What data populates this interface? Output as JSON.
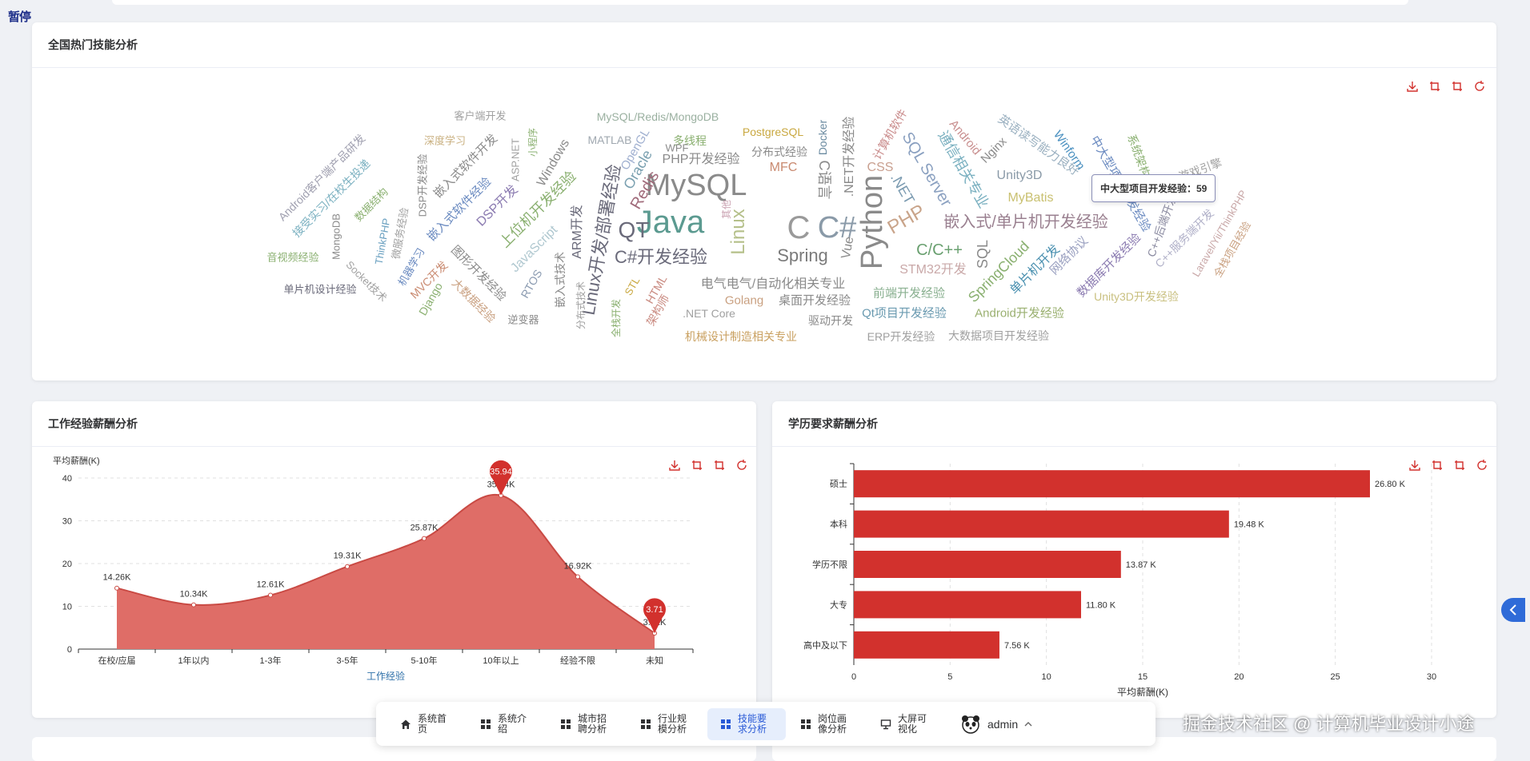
{
  "pause_label": "暂停",
  "colors": {
    "accent": "#d2312d",
    "area": "#df6d67",
    "nav_active": "#2859d6"
  },
  "wordcloud_card": {
    "title": "全国热门技能分析",
    "tooltip": "中大型项目开发经验：59",
    "words": [
      {
        "t": "MySQL",
        "c": "#8a8a8a",
        "s": 38,
        "x": 870,
        "y": 232,
        "r": 0
      },
      {
        "t": "Java",
        "c": "#5b9a90",
        "s": 40,
        "x": 838,
        "y": 278,
        "r": 0
      },
      {
        "t": "C",
        "c": "#9a9a9a",
        "s": 40,
        "x": 998,
        "y": 285,
        "r": 0
      },
      {
        "t": "C#",
        "c": "#8a9aa8",
        "s": 38,
        "x": 1046,
        "y": 285,
        "r": 0
      },
      {
        "t": "Linux",
        "c": "#b5c08a",
        "s": 24,
        "x": 923,
        "y": 290,
        "r": -90
      },
      {
        "t": "Python",
        "c": "#8a8a8a",
        "s": 38,
        "x": 1090,
        "y": 278,
        "r": -90
      },
      {
        "t": "QT",
        "c": "#6a6a7a",
        "s": 28,
        "x": 792,
        "y": 288,
        "r": 0
      },
      {
        "t": "Spring",
        "c": "#7a7a7a",
        "s": 22,
        "x": 1003,
        "y": 320,
        "r": 0
      },
      {
        "t": "PHP",
        "c": "#c9a48a",
        "s": 24,
        "x": 1133,
        "y": 275,
        "r": -30
      },
      {
        "t": "C#开发经验",
        "c": "#6a6a7a",
        "s": 22,
        "x": 826,
        "y": 322,
        "r": 0
      },
      {
        "t": "Linux开发/部署经验",
        "c": "#6a6a7a",
        "s": 22,
        "x": 752,
        "y": 300,
        "r": -80
      },
      {
        "t": "C/C++",
        "c": "#6aa070",
        "s": 20,
        "x": 1174,
        "y": 313,
        "r": 0
      },
      {
        "t": "嵌入式/单片机开发经验",
        "c": "#9a8090",
        "s": 20,
        "x": 1282,
        "y": 278,
        "r": 0
      },
      {
        "t": "Redis",
        "c": "#a06a7a",
        "s": 20,
        "x": 806,
        "y": 238,
        "r": -60
      },
      {
        "t": "Oracle",
        "c": "#7aa0b0",
        "s": 18,
        "x": 797,
        "y": 212,
        "r": -60
      },
      {
        "t": "OpenGL",
        "c": "#a0b0d0",
        "s": 15,
        "x": 794,
        "y": 187,
        "r": -60
      },
      {
        "t": "PHP开发经验",
        "c": "#8a8a8a",
        "s": 16,
        "x": 876,
        "y": 200,
        "r": 0
      },
      {
        "t": "MFC",
        "c": "#c98a70",
        "s": 16,
        "x": 979,
        "y": 210,
        "r": 0
      },
      {
        "t": "C语言",
        "c": "#8a8a8a",
        "s": 18,
        "x": 1030,
        "y": 225,
        "r": 90
      },
      {
        "t": "Docker",
        "c": "#6a8aa0",
        "s": 14,
        "x": 1028,
        "y": 172,
        "r": -90
      },
      {
        "t": ".NET开发经验",
        "c": "#8a8a8a",
        "s": 16,
        "x": 1062,
        "y": 196,
        "r": -90
      },
      {
        "t": "Vue",
        "c": "#8a8a8a",
        "s": 16,
        "x": 1060,
        "y": 310,
        "r": -80
      },
      {
        "t": ".NET",
        "c": "#7a9ab0",
        "s": 18,
        "x": 1128,
        "y": 236,
        "r": 60
      },
      {
        "t": "CSS",
        "c": "#c9a090",
        "s": 16,
        "x": 1100,
        "y": 210,
        "r": 0
      },
      {
        "t": "计算机软件",
        "c": "#c98a8a",
        "s": 14,
        "x": 1112,
        "y": 168,
        "r": -60
      },
      {
        "t": "SQL Server",
        "c": "#8aa0c0",
        "s": 20,
        "x": 1158,
        "y": 212,
        "r": 60
      },
      {
        "t": "SQL",
        "c": "#8a8a8a",
        "s": 18,
        "x": 1228,
        "y": 318,
        "r": -90
      },
      {
        "t": "STM32开发",
        "c": "#c9a8a8",
        "s": 16,
        "x": 1166,
        "y": 338,
        "r": 0
      },
      {
        "t": "SpringCloud",
        "c": "#8ab070",
        "s": 18,
        "x": 1248,
        "y": 340,
        "r": -45
      },
      {
        "t": "单片机开发",
        "c": "#4a90b0",
        "s": 16,
        "x": 1294,
        "y": 338,
        "r": -45
      },
      {
        "t": "前端开发经验",
        "c": "#8ab090",
        "s": 15,
        "x": 1136,
        "y": 367,
        "r": 0
      },
      {
        "t": "Qt项目开发经验",
        "c": "#6a9ab0",
        "s": 15,
        "x": 1130,
        "y": 392,
        "r": 0
      },
      {
        "t": "Android开发经验",
        "c": "#9ab070",
        "s": 15,
        "x": 1274,
        "y": 392,
        "r": 0
      },
      {
        "t": "ERP开发经验",
        "c": "#a0a0a0",
        "s": 14,
        "x": 1126,
        "y": 421,
        "r": 0
      },
      {
        "t": "大数据项目开发经验",
        "c": "#a0a0a0",
        "s": 14,
        "x": 1248,
        "y": 420,
        "r": 0
      },
      {
        "t": "通信相关专业",
        "c": "#7ab0c0",
        "s": 18,
        "x": 1204,
        "y": 212,
        "r": 60
      },
      {
        "t": "Android",
        "c": "#c99090",
        "s": 15,
        "x": 1206,
        "y": 172,
        "r": 50
      },
      {
        "t": "Nginx",
        "c": "#8a8a8a",
        "s": 15,
        "x": 1242,
        "y": 188,
        "r": -45
      },
      {
        "t": "英语读写能力良好",
        "c": "#9ab0c0",
        "s": 15,
        "x": 1298,
        "y": 182,
        "r": 35
      },
      {
        "t": "Winform",
        "c": "#4a90c0",
        "s": 15,
        "x": 1336,
        "y": 188,
        "r": 55
      },
      {
        "t": "Unity3D",
        "c": "#8a9aa8",
        "s": 16,
        "x": 1274,
        "y": 220,
        "r": 0
      },
      {
        "t": "MyBatis",
        "c": "#c9c070",
        "s": 16,
        "x": 1288,
        "y": 248,
        "r": 0
      },
      {
        "t": "中大型项目开发经验",
        "c": "#6a8ac0",
        "s": 15,
        "x": 1400,
        "y": 230,
        "r": 60
      },
      {
        "t": "系统架构设计",
        "c": "#8ab070",
        "s": 14,
        "x": 1428,
        "y": 208,
        "r": 70
      },
      {
        "t": "游戏引擎",
        "c": "#a0a0a0",
        "s": 14,
        "x": 1500,
        "y": 212,
        "r": -20
      },
      {
        "t": "网络协议",
        "c": "#9aa0c0",
        "s": 15,
        "x": 1336,
        "y": 320,
        "r": -45
      },
      {
        "t": "数据库开发经验",
        "c": "#8a7ab0",
        "s": 15,
        "x": 1386,
        "y": 332,
        "r": -45
      },
      {
        "t": "C++后端开发",
        "c": "#8a8aa0",
        "s": 14,
        "x": 1452,
        "y": 282,
        "r": -70
      },
      {
        "t": "C++服务端开发",
        "c": "#b0b0c8",
        "s": 14,
        "x": 1480,
        "y": 298,
        "r": -45
      },
      {
        "t": "Unity3D开发经验",
        "c": "#c9c080",
        "s": 14,
        "x": 1420,
        "y": 371,
        "r": 0
      },
      {
        "t": "Laravel/Yii/ThinkPHP",
        "c": "#c9a8a8",
        "s": 13,
        "x": 1524,
        "y": 292,
        "r": -60
      },
      {
        "t": "全栈项目经验",
        "c": "#c9a080",
        "s": 13,
        "x": 1540,
        "y": 312,
        "r": -60
      },
      {
        "t": "客户端开发",
        "c": "#a0a0a0",
        "s": 13,
        "x": 600,
        "y": 145,
        "r": 0
      },
      {
        "t": "MySQL/Redis/MongoDB",
        "c": "#9ab0a0",
        "s": 14,
        "x": 822,
        "y": 146,
        "r": 0
      },
      {
        "t": "PostgreSQL",
        "c": "#c9a840",
        "s": 14,
        "x": 966,
        "y": 165,
        "r": 0
      },
      {
        "t": "多线程",
        "c": "#8ab070",
        "s": 14,
        "x": 862,
        "y": 176,
        "r": 0
      },
      {
        "t": "分布式经验",
        "c": "#8a8a8a",
        "s": 14,
        "x": 974,
        "y": 190,
        "r": 0
      },
      {
        "t": "MATLAB",
        "c": "#a0a8b0",
        "s": 14,
        "x": 762,
        "y": 175,
        "r": 0
      },
      {
        "t": "WPF",
        "c": "#8a8a8a",
        "s": 13,
        "x": 846,
        "y": 185,
        "r": 0
      },
      {
        "t": "其他",
        "c": "#c9a0b0",
        "s": 12,
        "x": 908,
        "y": 262,
        "r": -90
      },
      {
        "t": "深度学习",
        "c": "#c9b080",
        "s": 13,
        "x": 556,
        "y": 176,
        "r": 0
      },
      {
        "t": "Android客户端产品研发",
        "c": "#a0a0b0",
        "s": 14,
        "x": 402,
        "y": 222,
        "r": -45
      },
      {
        "t": "接受实习/在校生投递",
        "c": "#7ab0c0",
        "s": 14,
        "x": 414,
        "y": 248,
        "r": -45
      },
      {
        "t": "数据结构",
        "c": "#8ab070",
        "s": 13,
        "x": 464,
        "y": 256,
        "r": -45
      },
      {
        "t": "DSP开发经验",
        "c": "#8a8a8a",
        "s": 13,
        "x": 528,
        "y": 232,
        "r": -90
      },
      {
        "t": "嵌入式软件开发",
        "c": "#8a8a8a",
        "s": 15,
        "x": 582,
        "y": 208,
        "r": -45
      },
      {
        "t": "嵌入式软件经验",
        "c": "#6a8ac0",
        "s": 15,
        "x": 574,
        "y": 262,
        "r": -45
      },
      {
        "t": "ASP.NET",
        "c": "#a0a0a0",
        "s": 13,
        "x": 644,
        "y": 200,
        "r": -90
      },
      {
        "t": "小程序",
        "c": "#8ab070",
        "s": 12,
        "x": 666,
        "y": 178,
        "r": -90
      },
      {
        "t": "DSP开发",
        "c": "#8a7ab0",
        "s": 16,
        "x": 622,
        "y": 258,
        "r": -45
      },
      {
        "t": "Windows",
        "c": "#8a8a8a",
        "s": 16,
        "x": 692,
        "y": 204,
        "r": -60
      },
      {
        "t": "上位机开发经验",
        "c": "#8ab070",
        "s": 18,
        "x": 672,
        "y": 262,
        "r": -45
      },
      {
        "t": "ARM开发",
        "c": "#6a6a7a",
        "s": 16,
        "x": 722,
        "y": 290,
        "r": -90
      },
      {
        "t": "JavaScript",
        "c": "#b0c8d0",
        "s": 16,
        "x": 668,
        "y": 312,
        "r": -45
      },
      {
        "t": "MongoDB",
        "c": "#8a8a8a",
        "s": 13,
        "x": 420,
        "y": 296,
        "r": -90
      },
      {
        "t": "ThinkPHP",
        "c": "#6aa0c0",
        "s": 13,
        "x": 478,
        "y": 302,
        "r": -80
      },
      {
        "t": "微服务经验",
        "c": "#a0a0a0",
        "s": 13,
        "x": 500,
        "y": 292,
        "r": -80
      },
      {
        "t": "音视频经验",
        "c": "#8ab070",
        "s": 13,
        "x": 366,
        "y": 322,
        "r": 0
      },
      {
        "t": "Socket技术",
        "c": "#a0a0a0",
        "s": 13,
        "x": 458,
        "y": 352,
        "r": 45
      },
      {
        "t": "单片机设计经验",
        "c": "#6a6a7a",
        "s": 13,
        "x": 400,
        "y": 362,
        "r": 0
      },
      {
        "t": "机器学习",
        "c": "#6a8ac0",
        "s": 13,
        "x": 514,
        "y": 334,
        "r": -60
      },
      {
        "t": "MVC开发",
        "c": "#c98a70",
        "s": 14,
        "x": 536,
        "y": 350,
        "r": -45
      },
      {
        "t": "Django",
        "c": "#8ab070",
        "s": 14,
        "x": 538,
        "y": 374,
        "r": -60
      },
      {
        "t": "图形开发经验",
        "c": "#8a8a8a",
        "s": 15,
        "x": 598,
        "y": 342,
        "r": 45
      },
      {
        "t": "大数据经验",
        "c": "#c9a080",
        "s": 14,
        "x": 592,
        "y": 376,
        "r": 45
      },
      {
        "t": "RTOS",
        "c": "#8a9ab0",
        "s": 14,
        "x": 664,
        "y": 355,
        "r": -60
      },
      {
        "t": "逆变器",
        "c": "#8a8a8a",
        "s": 13,
        "x": 654,
        "y": 400,
        "r": 0
      },
      {
        "t": "嵌入式技术",
        "c": "#8a8a8a",
        "s": 14,
        "x": 700,
        "y": 350,
        "r": -90
      },
      {
        "t": "分布式技术",
        "c": "#a0a0a0",
        "s": 12,
        "x": 726,
        "y": 382,
        "r": -90
      },
      {
        "t": "全栈开发",
        "c": "#8ab070",
        "s": 12,
        "x": 770,
        "y": 398,
        "r": -90
      },
      {
        "t": "STL",
        "c": "#c9a840",
        "s": 13,
        "x": 790,
        "y": 358,
        "r": -60
      },
      {
        "t": "HTML",
        "c": "#c98a80",
        "s": 14,
        "x": 820,
        "y": 362,
        "r": -60
      },
      {
        "t": "架构师",
        "c": "#c98a80",
        "s": 14,
        "x": 822,
        "y": 388,
        "r": -60
      },
      {
        "t": "电气电气/自动化相关专业",
        "c": "#8a8a8a",
        "s": 16,
        "x": 966,
        "y": 356,
        "r": 0
      },
      {
        "t": "Golang",
        "c": "#c9a080",
        "s": 15,
        "x": 930,
        "y": 376,
        "r": 0
      },
      {
        "t": "桌面开发经验",
        "c": "#8a8a8a",
        "s": 15,
        "x": 1018,
        "y": 376,
        "r": 0
      },
      {
        "t": ".NET Core",
        "c": "#a0a0a0",
        "s": 14,
        "x": 886,
        "y": 392,
        "r": 0
      },
      {
        "t": "驱动开发",
        "c": "#8a8a8a",
        "s": 14,
        "x": 1038,
        "y": 401,
        "r": 0
      },
      {
        "t": "机械设计制造相关专业",
        "c": "#c9a060",
        "s": 14,
        "x": 926,
        "y": 421,
        "r": 0
      }
    ]
  },
  "exp_card": {
    "title": "工作经验薪酬分析"
  },
  "edu_card": {
    "title": "学历要求薪酬分析"
  },
  "chart_data": [
    {
      "type": "area",
      "title": "工作经验薪酬分析",
      "xlabel": "工作经验",
      "ylabel": "平均薪酬(K)",
      "categories": [
        "在校/应届",
        "1年以内",
        "1-3年",
        "3-5年",
        "5-10年",
        "10年以上",
        "经验不限",
        "未知"
      ],
      "values": [
        14.26,
        10.34,
        12.61,
        19.31,
        25.87,
        35.94,
        16.92,
        3.71
      ],
      "data_labels": [
        "14.26K",
        "10.34K",
        "12.61K",
        "19.31K",
        "25.87K",
        "35.94K",
        "16.92K",
        "3.71K"
      ],
      "markers": [
        {
          "category": "10年以上",
          "label": "35.94"
        },
        {
          "category": "未知",
          "label": "3.71"
        }
      ],
      "ylim": [
        0,
        40
      ],
      "yticks": [
        0,
        10,
        20,
        30,
        40
      ],
      "grid": true
    },
    {
      "type": "bar",
      "orientation": "horizontal",
      "title": "学历要求薪酬分析",
      "xlabel": "平均薪酬(K)",
      "categories": [
        "硕士",
        "本科",
        "学历不限",
        "大专",
        "高中及以下"
      ],
      "values": [
        26.8,
        19.48,
        13.87,
        11.8,
        7.56
      ],
      "data_labels": [
        "26.80 K",
        "19.48 K",
        "13.87 K",
        "11.80 K",
        "7.56 K"
      ],
      "xlim": [
        0,
        30
      ],
      "xticks": [
        0,
        5,
        10,
        15,
        20,
        25,
        30
      ],
      "grid": true
    }
  ],
  "navbar": {
    "items": [
      {
        "label": "系统首页",
        "icon": "home-icon"
      },
      {
        "label": "系统介绍",
        "icon": "grid-icon"
      },
      {
        "label": "城市招聘分析",
        "icon": "grid-icon"
      },
      {
        "label": "行业规模分析",
        "icon": "grid-icon"
      },
      {
        "label": "技能要求分析",
        "icon": "grid-icon",
        "active": true
      },
      {
        "label": "岗位画像分析",
        "icon": "grid-icon"
      },
      {
        "label": "大屏可视化",
        "icon": "screen-icon"
      }
    ],
    "user": "admin"
  },
  "watermark": "掘金技术社区 @ 计算机毕业设计小途"
}
